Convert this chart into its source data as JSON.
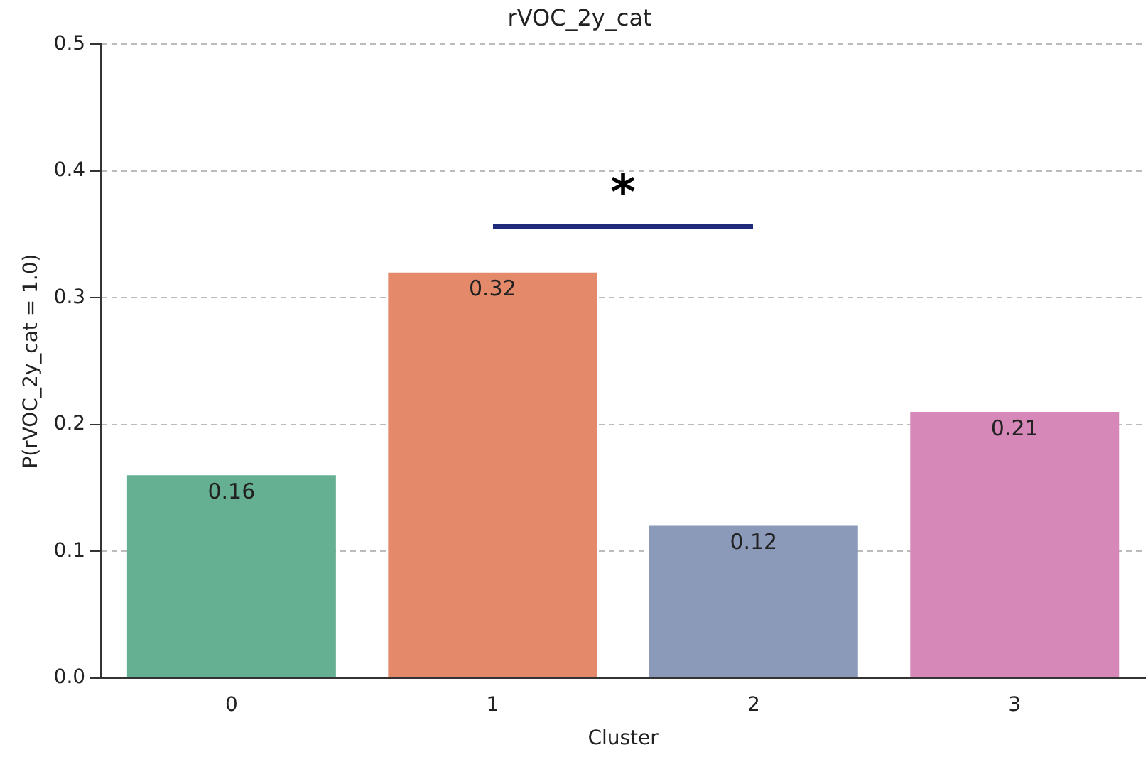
{
  "chart_data": {
    "type": "bar",
    "title": "rVOC_2y_cat",
    "xlabel": "Cluster",
    "ylabel": "P(rVOC_2y_cat = 1.0)",
    "categories": [
      "0",
      "1",
      "2",
      "3"
    ],
    "values": [
      0.16,
      0.32,
      0.12,
      0.21
    ],
    "colors": [
      "#65af93",
      "#e48a6b",
      "#8c9aba",
      "#d689b8"
    ],
    "ylim": [
      0,
      0.5
    ],
    "yticks": [
      {
        "value": 0,
        "label": "0.0"
      },
      {
        "value": 0.1,
        "label": "0.1"
      },
      {
        "value": 0.2,
        "label": "0.2"
      },
      {
        "value": 0.3,
        "label": "0.3"
      },
      {
        "value": 0.4,
        "label": "0.4"
      },
      {
        "value": 0.5,
        "label": "0.5"
      }
    ],
    "grid": "y",
    "data_labels": true,
    "annotations": [
      "*"
    ]
  }
}
